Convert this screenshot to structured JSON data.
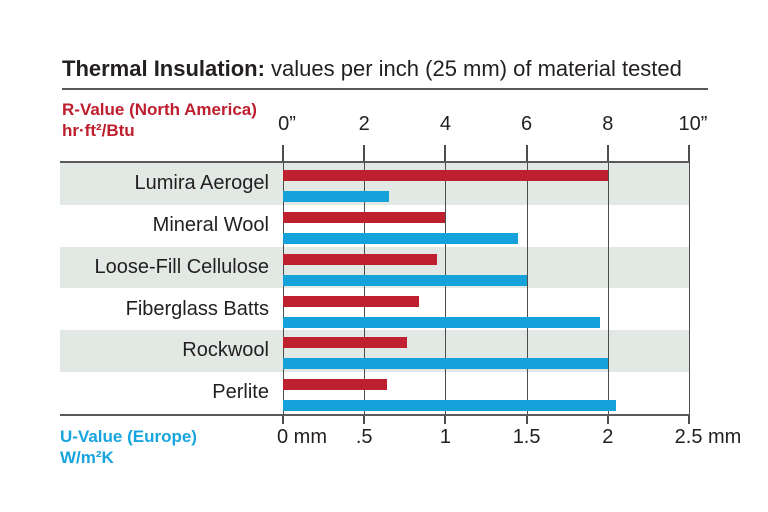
{
  "title": {
    "bold": "Thermal Insulation:",
    "rest": "values per inch (25 mm) of material tested"
  },
  "top_axis_title": {
    "name": "R-Value (North America)",
    "unit": "hr·ft²/Btu",
    "color": "#be1e2d"
  },
  "bottom_axis_title": {
    "name": "U-Value (Europe)",
    "unit": "W/m²K",
    "color": "#18a5de"
  },
  "chart_data": {
    "type": "bar",
    "orientation": "horizontal",
    "title": "Thermal Insulation: values per inch (25 mm) of material tested",
    "categories": [
      "Lumira Aerogel",
      "Mineral Wool",
      "Loose-Fill Cellulose",
      "Fiberglass Batts",
      "Rockwool",
      "Perlite"
    ],
    "series": [
      {
        "name": "R-Value (North America)",
        "unit": "hr·ft²/Btu",
        "axis": "top",
        "color": "#bf2030",
        "values": [
          8.0,
          4.0,
          3.8,
          3.35,
          3.05,
          2.55
        ]
      },
      {
        "name": "U-Value (Europe)",
        "unit": "W/m²K",
        "axis": "bottom",
        "color": "#15a2da",
        "values": [
          0.65,
          1.45,
          1.5,
          1.95,
          2.0,
          2.05
        ]
      }
    ],
    "top_axis": {
      "ticks": [
        "0”",
        "2",
        "4",
        "6",
        "8",
        "10”"
      ],
      "range": [
        0,
        10
      ]
    },
    "bottom_axis": {
      "ticks": [
        "0 mm",
        ".5",
        "1",
        "1.5",
        "2",
        "2.5 mm"
      ],
      "range": [
        0,
        2.5
      ]
    },
    "grid": true,
    "row_band_color": "#e2e8e3",
    "gridline_color": "#4d4d4d",
    "legend_position": "axis-titles"
  }
}
